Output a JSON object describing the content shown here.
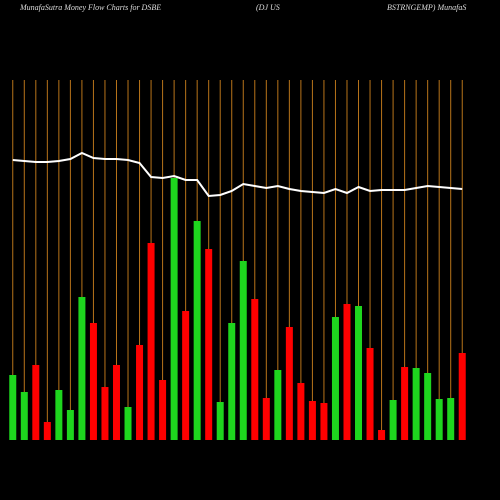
{
  "chart_data": {
    "type": "bar",
    "title": "MunafaSutra  Money Flow  Charts for DSBE",
    "subtitle": "(DJ US",
    "subtitle2": "BSTRNGEMP) MunafaS",
    "categories": [
      null,
      null,
      null,
      null,
      null,
      null,
      null,
      null,
      null,
      null,
      null,
      null,
      null,
      null,
      null,
      null,
      null,
      null,
      null,
      null,
      null,
      null,
      null,
      null,
      null,
      null,
      null,
      null,
      null,
      null,
      null,
      null,
      null,
      null,
      null,
      null,
      null,
      null,
      null,
      null
    ],
    "values": [
      65,
      48,
      75,
      18,
      50,
      30,
      143,
      117,
      53,
      75,
      33,
      95,
      197,
      60,
      262,
      129,
      219,
      191,
      38,
      117,
      179,
      141,
      42,
      70,
      113,
      57,
      39,
      37,
      123,
      136,
      134,
      92,
      10,
      40,
      73,
      72,
      67,
      41,
      42,
      87
    ],
    "colors": [
      "#1ed61e",
      "#1ed61e",
      "#ff0000",
      "#ff0000",
      "#1ed61e",
      "#1ed61e",
      "#1ed61e",
      "#ff0000",
      "#ff0000",
      "#ff0000",
      "#1ed61e",
      "#ff0000",
      "#ff0000",
      "#ff0000",
      "#1ed61e",
      "#ff0000",
      "#1ed61e",
      "#ff0000",
      "#1ed61e",
      "#1ed61e",
      "#1ed61e",
      "#ff0000",
      "#ff0000",
      "#1ed61e",
      "#ff0000",
      "#ff0000",
      "#ff0000",
      "#ff0000",
      "#1ed61e",
      "#ff0000",
      "#1ed61e",
      "#ff0000",
      "#ff0000",
      "#1ed61e",
      "#ff0000",
      "#1ed61e",
      "#1ed61e",
      "#1ed61e",
      "#1ed61e",
      "#ff0000"
    ],
    "line": {
      "color": "#ffffff",
      "values": [
        280,
        279,
        278,
        278,
        279,
        281,
        287,
        282,
        281,
        281,
        280,
        277,
        263,
        262,
        264,
        260,
        260,
        244,
        245,
        249,
        256,
        254,
        252,
        254,
        251,
        249,
        248,
        247,
        251,
        247,
        253,
        249,
        250,
        250,
        250,
        252,
        254,
        253,
        252,
        251
      ]
    },
    "ylim": [
      0,
      360
    ],
    "grid": true,
    "grid_color": "#b8741a"
  }
}
